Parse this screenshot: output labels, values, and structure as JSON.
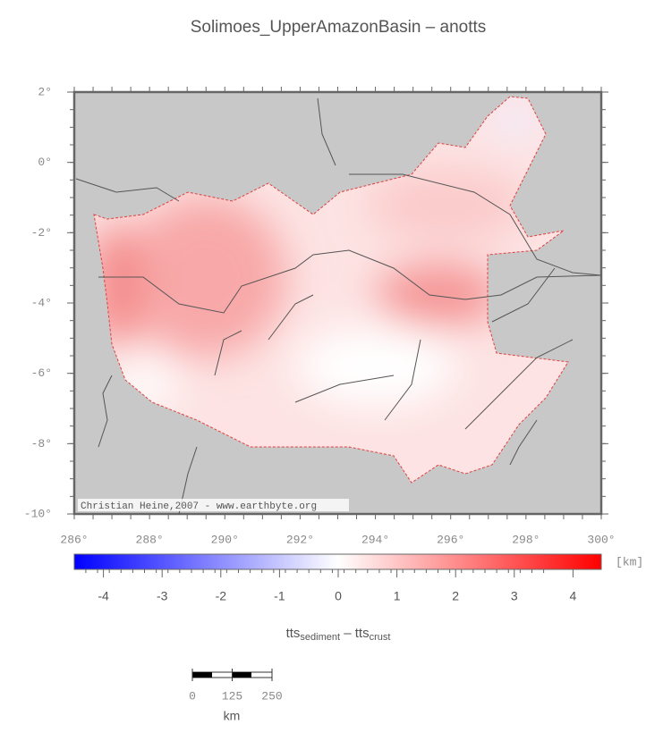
{
  "title": "Solimoes_UpperAmazonBasin – anotts",
  "map": {
    "lat_labels": [
      "2°",
      "0°",
      "-2°",
      "-4°",
      "-6°",
      "-8°",
      "-10°"
    ],
    "lon_labels": [
      "286°",
      "288°",
      "290°",
      "292°",
      "294°",
      "296°",
      "298°",
      "300°"
    ],
    "credit": "Christian Heine,2007 - www.earthbyte.org"
  },
  "colorbar": {
    "unit": "[km]",
    "tick_labels": [
      "-4",
      "-3",
      "-2",
      "-1",
      "0",
      "1",
      "2",
      "3",
      "4"
    ],
    "label": {
      "main1": "tts",
      "sub1": "sediment",
      "main2": " – tts",
      "sub2": "crust"
    }
  },
  "scale_bar": {
    "tick_labels": [
      "0",
      "125",
      "250"
    ],
    "unit": "km"
  }
}
